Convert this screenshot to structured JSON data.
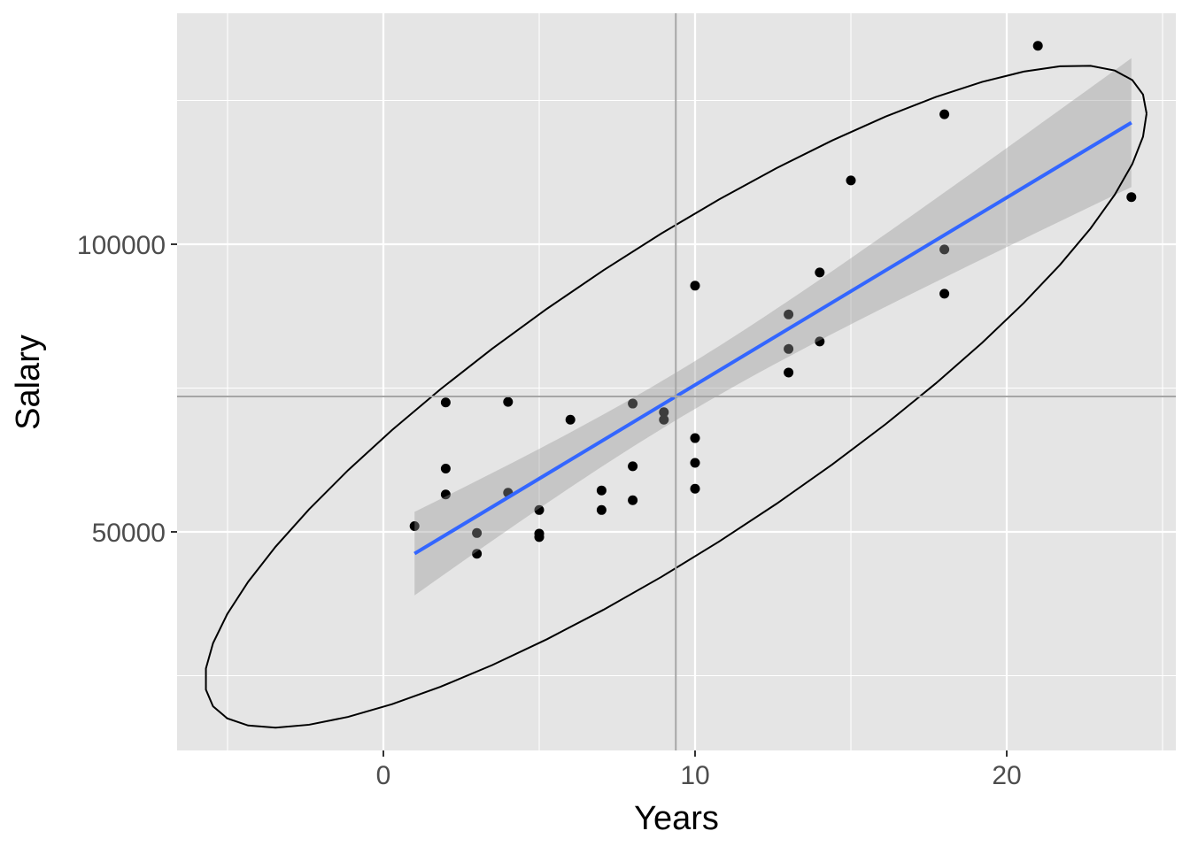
{
  "chart_data": {
    "type": "scatter",
    "xlabel": "Years",
    "ylabel": "Salary",
    "xlim": [
      -6.6,
      25.4
    ],
    "ylim": [
      12000,
      140000
    ],
    "x_ticks": [
      0,
      10,
      20
    ],
    "y_ticks": [
      50000,
      100000
    ],
    "grid": true,
    "points": [
      [
        1,
        51000
      ],
      [
        2,
        72500
      ],
      [
        2,
        61000
      ],
      [
        2,
        56500
      ],
      [
        3,
        49800
      ],
      [
        3,
        46200
      ],
      [
        4,
        72600
      ],
      [
        4,
        56800
      ],
      [
        5,
        53800
      ],
      [
        5,
        49700
      ],
      [
        5,
        49100
      ],
      [
        6,
        69500
      ],
      [
        7,
        57200
      ],
      [
        7,
        53800
      ],
      [
        8,
        72300
      ],
      [
        8,
        61400
      ],
      [
        8,
        55500
      ],
      [
        9,
        70800
      ],
      [
        9,
        69500
      ],
      [
        10,
        92800
      ],
      [
        10,
        66300
      ],
      [
        10,
        62000
      ],
      [
        10,
        57500
      ],
      [
        13,
        87800
      ],
      [
        13,
        81800
      ],
      [
        13,
        77700
      ],
      [
        14,
        95100
      ],
      [
        14,
        83100
      ],
      [
        15,
        111100
      ],
      [
        18,
        122600
      ],
      [
        18,
        99100
      ],
      [
        18,
        91400
      ],
      [
        21,
        134500
      ],
      [
        24,
        108200
      ]
    ],
    "overlays": {
      "linear_fit": true,
      "confidence_band": true,
      "ellipse_level": 0.95,
      "mean_lines": true
    },
    "colors": {
      "panel": "#E5E5E5",
      "grid": "#FFFFFF",
      "points": "#000000",
      "fit_line": "#3366FF",
      "band": "#999999",
      "mean_lines": "#A6A6A6",
      "ellipse": "#000000"
    }
  }
}
